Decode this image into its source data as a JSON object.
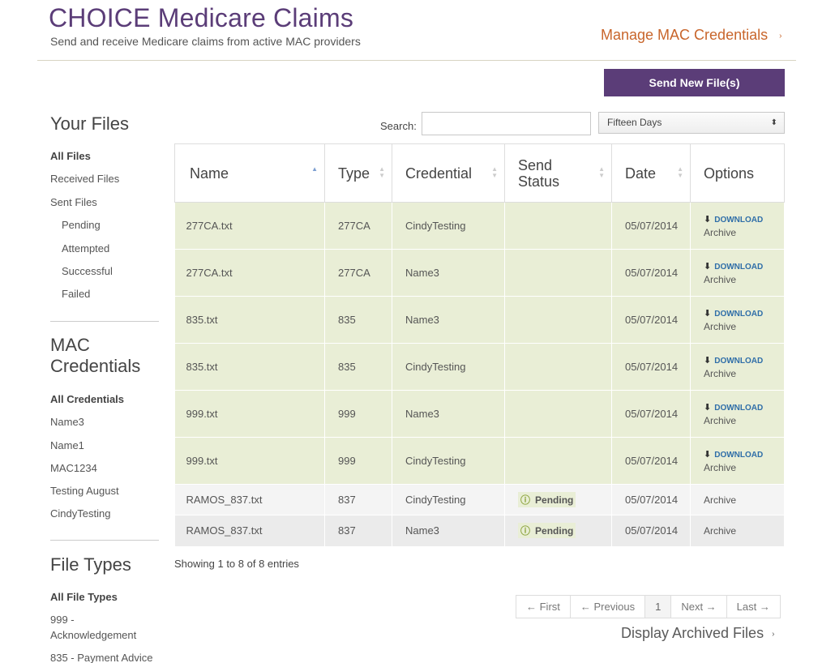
{
  "header": {
    "title": "CHOICE Medicare Claims",
    "subtitle": "Send and receive Medicare claims from active MAC providers",
    "manage_link": "Manage MAC Credentials",
    "manage_arrow": "›"
  },
  "send_button": "Send New File(s)",
  "sidebar": {
    "files_heading": "Your Files",
    "files": [
      "All Files",
      "Received Files",
      "Sent Files",
      "Pending",
      "Attempted",
      "Successful",
      "Failed"
    ],
    "credentials_heading_line1": "MAC",
    "credentials_heading_line2": "Credentials",
    "credentials": [
      "All Credentials",
      "Name3",
      "Name1",
      "MAC1234",
      "Testing August",
      "CindyTesting"
    ],
    "types_heading": "File Types",
    "types": [
      "All File Types",
      "999 -",
      "Acknowledgement",
      "835 - Payment Advice"
    ]
  },
  "controls": {
    "search_label": "Search:",
    "search_value": "",
    "range_selected": "Fifteen Days",
    "range_caret": "⬍"
  },
  "table": {
    "headers": {
      "name": "Name",
      "type": "Type",
      "credential": "Credential",
      "send_status_1": "Send",
      "send_status_2": "Status",
      "date": "Date",
      "options": "Options"
    },
    "rows": [
      {
        "name": "277CA.txt",
        "type": "277CA",
        "credential": "CindyTesting",
        "status": "",
        "date": "05/07/2014",
        "download": "DOWNLOAD",
        "archive": "Archive"
      },
      {
        "name": "277CA.txt",
        "type": "277CA",
        "credential": "Name3",
        "status": "",
        "date": "05/07/2014",
        "download": "DOWNLOAD",
        "archive": "Archive"
      },
      {
        "name": "835.txt",
        "type": "835",
        "credential": "Name3",
        "status": "",
        "date": "05/07/2014",
        "download": "DOWNLOAD",
        "archive": "Archive"
      },
      {
        "name": "835.txt",
        "type": "835",
        "credential": "CindyTesting",
        "status": "",
        "date": "05/07/2014",
        "download": "DOWNLOAD",
        "archive": "Archive"
      },
      {
        "name": "999.txt",
        "type": "999",
        "credential": "Name3",
        "status": "",
        "date": "05/07/2014",
        "download": "DOWNLOAD",
        "archive": "Archive"
      },
      {
        "name": "999.txt",
        "type": "999",
        "credential": "CindyTesting",
        "status": "",
        "date": "05/07/2014",
        "download": "DOWNLOAD",
        "archive": "Archive"
      },
      {
        "name": "RAMOS_837.txt",
        "type": "837",
        "credential": "CindyTesting",
        "status": "Pending",
        "date": "05/07/2014",
        "archive": "Archive"
      },
      {
        "name": "RAMOS_837.txt",
        "type": "837",
        "credential": "Name3",
        "status": "Pending",
        "date": "05/07/2014",
        "archive": "Archive"
      }
    ]
  },
  "showing": "Showing 1 to 8 of 8 entries",
  "pager": {
    "first": "← First",
    "previous": "← Previous",
    "current": "1",
    "next": "Next →",
    "last": "Last →"
  },
  "archived_link": "Display Archived Files",
  "archived_arrow": "›",
  "colors": {
    "brand_purple": "#5b3d78",
    "accent_orange": "#c8652b",
    "row_green": "#e9eed6",
    "link_blue": "#2f6ea8"
  }
}
